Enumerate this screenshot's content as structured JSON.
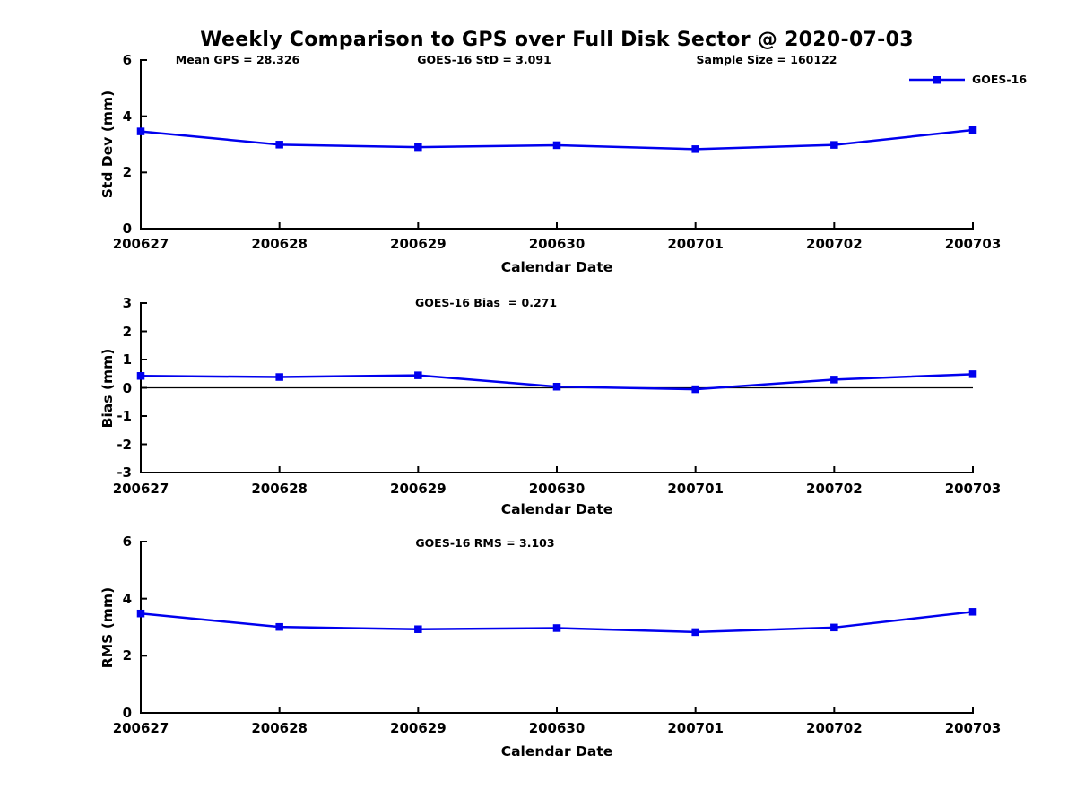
{
  "figure": {
    "title": "Weekly Comparison to GPS over Full Disk Sector @ 2020-07-03",
    "legend": {
      "label": "GOES-16",
      "position": "top-right"
    },
    "colors": {
      "line": "#0000ee",
      "axis": "#000000",
      "text": "#000000",
      "background": "#ffffff"
    }
  },
  "chart_data": [
    {
      "type": "line",
      "name": "std-dev",
      "annotations": [
        "Mean GPS = 28.326",
        "GOES-16 StD = 3.091",
        "Sample Size = 160122"
      ],
      "categories": [
        "200627",
        "200628",
        "200629",
        "200630",
        "200701",
        "200702",
        "200703"
      ],
      "series": [
        {
          "name": "GOES-16",
          "color": "#0000ee",
          "marker": "square",
          "values": [
            3.46,
            2.99,
            2.9,
            2.97,
            2.83,
            2.98,
            3.51
          ]
        }
      ],
      "xlabel": "Calendar Date",
      "ylabel": "Std Dev (mm)",
      "ylim": [
        0,
        6
      ],
      "yticks": [
        6,
        4,
        2,
        0
      ],
      "grid": false,
      "zero_line": false,
      "legend_visible": true
    },
    {
      "type": "line",
      "name": "bias",
      "annotations": [
        "GOES-16 Bias  = 0.271"
      ],
      "categories": [
        "200627",
        "200628",
        "200629",
        "200630",
        "200701",
        "200702",
        "200703"
      ],
      "series": [
        {
          "name": "GOES-16",
          "color": "#0000ee",
          "marker": "square",
          "values": [
            0.42,
            0.38,
            0.44,
            0.04,
            -0.05,
            0.29,
            0.48
          ]
        }
      ],
      "xlabel": "Calendar Date",
      "ylabel": "Bias (mm)",
      "ylim": [
        -3,
        3
      ],
      "yticks": [
        3,
        2,
        1,
        0,
        -1,
        -2,
        -3
      ],
      "grid": false,
      "zero_line": true,
      "legend_visible": false
    },
    {
      "type": "line",
      "name": "rms",
      "annotations": [
        "GOES-16 RMS = 3.103"
      ],
      "categories": [
        "200627",
        "200628",
        "200629",
        "200630",
        "200701",
        "200702",
        "200703"
      ],
      "series": [
        {
          "name": "GOES-16",
          "color": "#0000ee",
          "marker": "square",
          "values": [
            3.48,
            3.01,
            2.93,
            2.97,
            2.83,
            2.99,
            3.54
          ]
        }
      ],
      "xlabel": "Calendar Date",
      "ylabel": "RMS (mm)",
      "ylim": [
        0,
        6
      ],
      "yticks": [
        6,
        4,
        2,
        0
      ],
      "grid": false,
      "zero_line": true,
      "legend_visible": false
    }
  ]
}
